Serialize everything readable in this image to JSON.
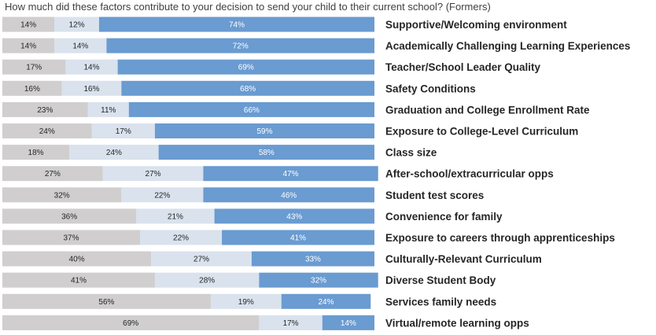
{
  "chart_data": {
    "type": "bar",
    "stacked": true,
    "orientation": "horizontal",
    "title": "How much did these factors contribute to your decision to send your child to their current school? (Formers)",
    "categories": [
      "Supportive/Welcoming environment",
      "Academically Challenging Learning Experiences",
      "Teacher/School Leader Quality",
      "Safety Conditions",
      "Graduation and College Enrollment Rate",
      "Exposure to College-Level Curriculum",
      "Class size",
      "After-school/extracurricular opps",
      "Student test scores",
      "Convenience for family",
      "Exposure to careers through apprenticeships",
      "Culturally-Relevant Curriculum",
      "Diverse Student Body",
      "Services family needs",
      "Virtual/remote learning opps"
    ],
    "series": [
      {
        "name": "segment-1",
        "color": "#d0cece",
        "label_color": "#262626",
        "values": [
          14,
          14,
          17,
          16,
          23,
          24,
          18,
          27,
          32,
          36,
          37,
          40,
          41,
          56,
          69
        ]
      },
      {
        "name": "segment-2",
        "color": "#d9e2ed",
        "label_color": "#262626",
        "values": [
          12,
          14,
          14,
          16,
          11,
          17,
          24,
          27,
          22,
          21,
          22,
          27,
          28,
          19,
          17
        ]
      },
      {
        "name": "segment-3",
        "color": "#6a9bd1",
        "label_color": "#ffffff",
        "values": [
          74,
          72,
          69,
          68,
          66,
          59,
          58,
          47,
          46,
          43,
          41,
          33,
          32,
          24,
          14
        ]
      }
    ],
    "value_suffix": "%",
    "xlim": [
      0,
      100
    ],
    "legend": "none",
    "grid": false
  }
}
